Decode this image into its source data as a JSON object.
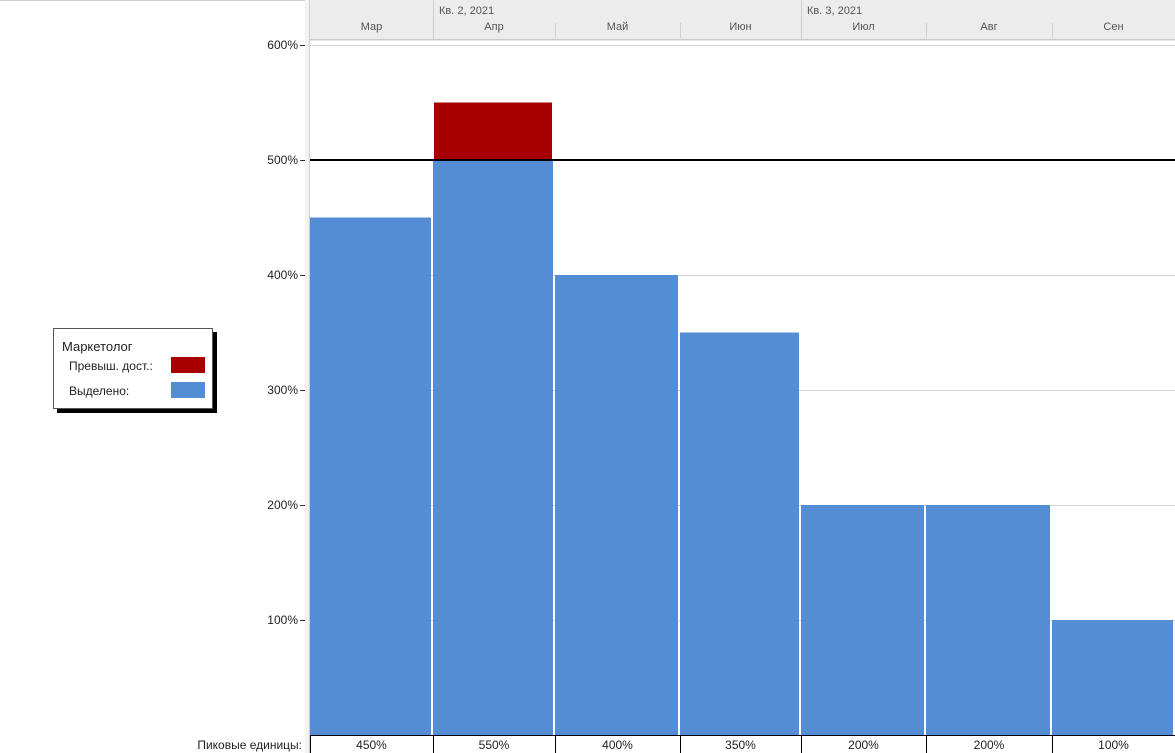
{
  "timescale": {
    "quarters": [
      {
        "label": "Кв. 2, 2021",
        "start_month": 1
      },
      {
        "label": "Кв. 3, 2021",
        "start_month": 4
      }
    ],
    "months": [
      "Мар",
      "Апр",
      "Май",
      "Июн",
      "Июл",
      "Авг",
      "Сен"
    ]
  },
  "legend": {
    "title": "Маркетолог",
    "items": [
      {
        "label": "Превыш. дост.:",
        "color": "#a80000"
      },
      {
        "label": "Выделено:",
        "color": "#548dd4"
      }
    ]
  },
  "row_label": "Пиковые единицы:",
  "colors": {
    "allocated": "#548dd4",
    "overallocated": "#a80000",
    "max_line": "#000000",
    "grid": "#d6d6d6"
  },
  "chart_data": {
    "type": "bar",
    "stacked": true,
    "categories": [
      "Мар",
      "Апр",
      "Май",
      "Июн",
      "Июл",
      "Авг",
      "Сен"
    ],
    "series": [
      {
        "name": "Выделено:",
        "values": [
          450,
          500,
          400,
          350,
          200,
          200,
          100
        ]
      },
      {
        "name": "Превыш. дост.:",
        "values": [
          0,
          50,
          0,
          0,
          0,
          0,
          0
        ]
      }
    ],
    "peak_units": [
      "450%",
      "550%",
      "400%",
      "350%",
      "200%",
      "200%",
      "100%"
    ],
    "y_ticks": [
      "100%",
      "200%",
      "300%",
      "400%",
      "500%",
      "600%"
    ],
    "ylim": [
      0,
      600
    ],
    "max_units_line": 500,
    "grid": true,
    "legend_position": "left"
  }
}
